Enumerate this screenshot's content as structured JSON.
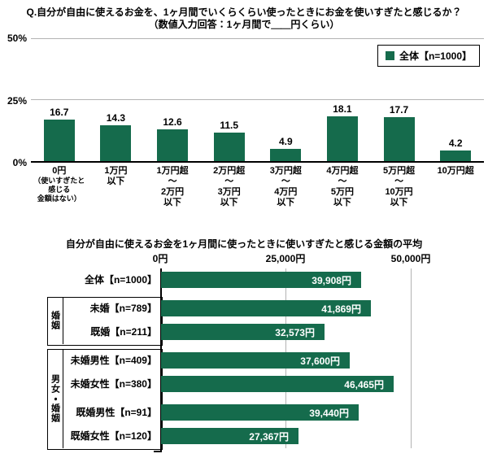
{
  "colors": {
    "bar": "#156b4c",
    "grid": "#b3b3b3",
    "axis": "#000000",
    "value_text_on_bar": "#ffffff"
  },
  "chart_data": [
    {
      "type": "bar",
      "orientation": "vertical",
      "title": "Q.自分が自由に使えるお金を、1ヶ月間でいくらくらい使ったときにお金を使いすぎたと感じるか？",
      "subtitle": "（数値入力回答：1ヶ月間で＿＿円くらい）",
      "legend": "全体【n=1000】",
      "unit": "%",
      "ylim": [
        0,
        50
      ],
      "yticks": [
        "50%",
        "25%",
        "0%"
      ],
      "grid": true,
      "legend_position": "top-right",
      "categories": [
        {
          "main": [
            "0円"
          ],
          "sub": [
            "（使いすぎたと",
            "感じる",
            "金額はない）"
          ]
        },
        {
          "main": [
            "1万円",
            "以下"
          ],
          "sub": []
        },
        {
          "main": [
            "1万円超",
            "～",
            "2万円",
            "以下"
          ],
          "sub": []
        },
        {
          "main": [
            "2万円超",
            "～",
            "3万円",
            "以下"
          ],
          "sub": []
        },
        {
          "main": [
            "3万円超",
            "～",
            "4万円",
            "以下"
          ],
          "sub": []
        },
        {
          "main": [
            "4万円超",
            "～",
            "5万円",
            "以下"
          ],
          "sub": []
        },
        {
          "main": [
            "5万円超",
            "～",
            "10万円",
            "以下"
          ],
          "sub": []
        },
        {
          "main": [
            "10万円超"
          ],
          "sub": []
        }
      ],
      "values": [
        16.7,
        14.3,
        12.6,
        11.5,
        4.9,
        18.1,
        17.7,
        4.2
      ]
    },
    {
      "type": "bar",
      "orientation": "horizontal",
      "title": "自分が自由に使えるお金を1ヶ月間に使ったときに使いすぎたと感じる金額の平均",
      "xlim": [
        0,
        50000
      ],
      "xticks": [
        "0円",
        "25,000円",
        "50,000円"
      ],
      "grid": true,
      "blocks": [
        {
          "group": "",
          "rows": [
            {
              "label": "全体【n=1000】",
              "value": 39908,
              "display": "39,908円"
            }
          ]
        },
        {
          "group": "婚姻",
          "rows": [
            {
              "label": "未婚【n=789】",
              "value": 41869,
              "display": "41,869円"
            },
            {
              "label": "既婚【n=211】",
              "value": 32573,
              "display": "32,573円"
            }
          ]
        },
        {
          "group": "男女・婚姻",
          "rows": [
            {
              "label": "未婚男性【n=409】",
              "value": 37600,
              "display": "37,600円"
            },
            {
              "label": "未婚女性【n=380】",
              "value": 46465,
              "display": "46,465円"
            },
            {
              "label": "既婚男性【n=91】",
              "value": 39440,
              "display": "39,440円",
              "gap_before": true
            },
            {
              "label": "既婚女性【n=120】",
              "value": 27367,
              "display": "27,367円"
            }
          ]
        }
      ]
    }
  ]
}
